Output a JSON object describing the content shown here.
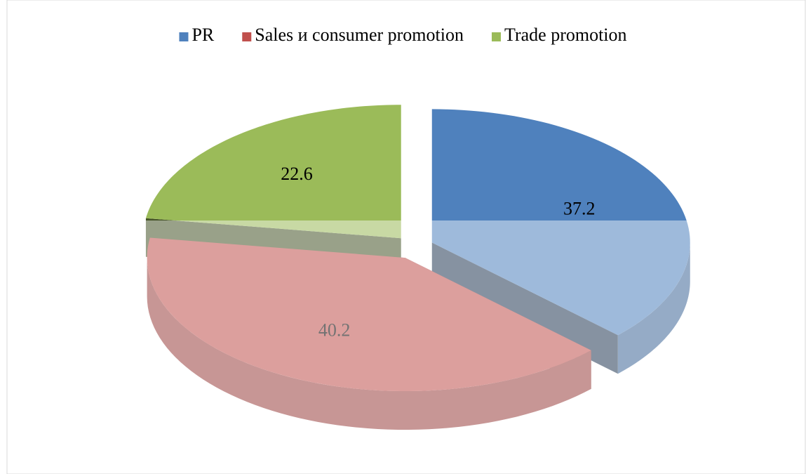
{
  "chart_data": {
    "type": "pie",
    "three_d": true,
    "exploded": true,
    "categories": [
      "PR",
      "Sales и consumer promotion",
      "Trade promotion"
    ],
    "values": [
      37.2,
      40.2,
      22.6
    ],
    "colors": [
      "#4f81bd",
      "#c0504d",
      "#9bbb59"
    ],
    "legend": "top",
    "data_labels": true
  }
}
